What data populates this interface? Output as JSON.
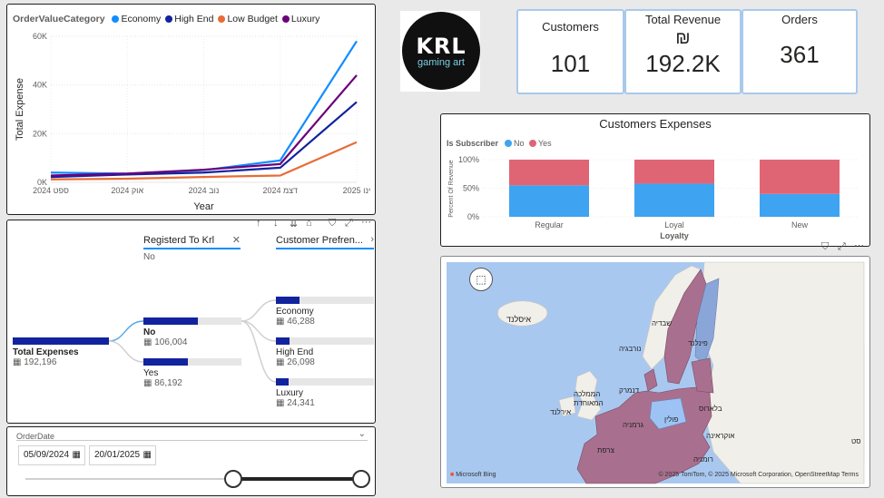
{
  "line_chart": {
    "legend_title": "OrderValueCategory",
    "ylabel": "Total Expense",
    "xlabel": "Year"
  },
  "chart_data": [
    {
      "type": "line",
      "x": [
        "ספט 2024",
        "אוק 2024",
        "נוב 2024",
        "דצמ 2024",
        "ינו 2025"
      ],
      "series": [
        {
          "name": "Economy",
          "color": "#118dff",
          "values": [
            4000,
            3600,
            5000,
            9000,
            58000
          ]
        },
        {
          "name": "High End",
          "color": "#12239e",
          "values": [
            2200,
            3200,
            4000,
            6000,
            33000
          ]
        },
        {
          "name": "Low Budget",
          "color": "#e66c37",
          "values": [
            1200,
            1500,
            2200,
            2800,
            16500
          ]
        },
        {
          "name": "Luxury",
          "color": "#6b007b",
          "values": [
            2800,
            3600,
            5200,
            7500,
            44000
          ]
        }
      ],
      "yticks": [
        "0K",
        "20K",
        "40K",
        "60K"
      ],
      "ylim": [
        0,
        60000
      ],
      "xlabel": "Year",
      "ylabel": "Total Expense",
      "grid": true,
      "legend": "top-left"
    },
    {
      "type": "bar",
      "title": "Customers Expenses",
      "categories": [
        "Regular",
        "Loyal",
        "New"
      ],
      "series": [
        {
          "name": "No",
          "color": "#3ea3f0",
          "values": [
            55,
            58,
            40
          ]
        },
        {
          "name": "Yes",
          "color": "#e06574",
          "values": [
            45,
            42,
            60
          ]
        }
      ],
      "yticks": [
        "0%",
        "50%",
        "100%"
      ],
      "ylim": [
        0,
        100
      ],
      "xlabel": "Loyalty",
      "ylabel": "Percent Of Revenue",
      "legend_title": "Is Subscriber",
      "legend": "top-left"
    }
  ],
  "kpis": {
    "customers_label": "Customers",
    "customers_value": "101",
    "revenue_label": "Total Revenue",
    "revenue_symbol": "₪",
    "revenue_value": "192.2K",
    "orders_label": "Orders",
    "orders_value": "361"
  },
  "logo": {
    "line1": "KRL",
    "line2": "gaming art"
  },
  "decomp": {
    "col1_header": "Registerd To Krl",
    "col1_filter": "No",
    "col2_header": "Customer Prefren...",
    "root_label": "Total Expenses",
    "root_value": "192,196",
    "no_label": "No",
    "no_value": "106,004",
    "yes_label": "Yes",
    "yes_value": "86,192",
    "economy_label": "Economy",
    "economy_value": "46,288",
    "highend_label": "High End",
    "highend_value": "26,098",
    "luxury_label": "Luxury",
    "luxury_value": "24,341"
  },
  "slicer": {
    "title": "OrderDate",
    "start": "05/09/2024",
    "end": "20/01/2025"
  },
  "map": {
    "labels": {
      "iceland": "איסלנד",
      "sweden": "שבדיה",
      "finland": "פינלנד",
      "norway": "נורבגיה",
      "denmark": "דנמרק",
      "uk_1": "הממלכה",
      "uk_2": "המאוחדת",
      "ireland": "אירלנד",
      "poland": "פולין",
      "belarus": "בלארוס",
      "germany": "גרמניה",
      "ukraine": "אוקראינה",
      "france": "צרפת",
      "romania": "רומניה",
      "kazakh": "סט"
    },
    "attribution": "© 2025 TomTom, © 2025 Microsoft Corporation, OpenStreetMap Terms",
    "bing": "Microsoft Bing"
  },
  "colors": {
    "eu_fill": "#a8708e",
    "sea": "#a9c8f0",
    "land": "#f1efe9"
  }
}
